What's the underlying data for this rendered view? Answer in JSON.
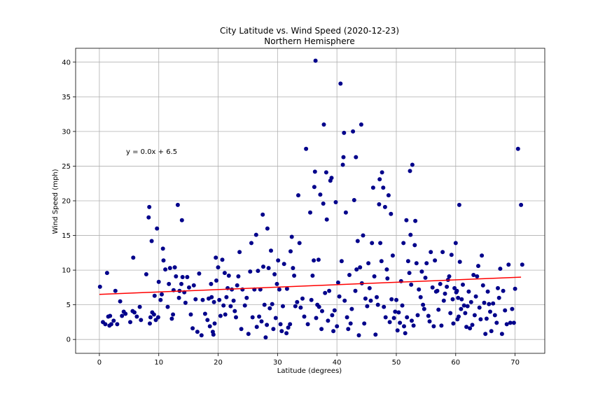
{
  "chart_data": {
    "type": "scatter",
    "title": "City Latitude vs. Wind Speed (2020-12-23)",
    "subtitle": "Northern Hemisphere",
    "xlabel": "Latitude (degrees)",
    "ylabel": "Wind Speed (mph)",
    "xlim": [
      -4,
      75
    ],
    "ylim": [
      -2,
      42
    ],
    "xticks": [
      0,
      10,
      20,
      30,
      40,
      50,
      60,
      70
    ],
    "yticks": [
      0,
      5,
      10,
      15,
      20,
      25,
      30,
      35,
      40
    ],
    "grid": true,
    "marker_color": "#00008b",
    "line_color": "#ff0000",
    "regression": {
      "slope": 0.035,
      "intercept": 6.5,
      "x_range": [
        0,
        71
      ],
      "equation": "y = 0.0x + 6.5"
    },
    "points": [
      [
        0.1,
        7.6
      ],
      [
        0.6,
        2.5
      ],
      [
        1.0,
        2.2
      ],
      [
        1.3,
        9.6
      ],
      [
        1.5,
        3.3
      ],
      [
        1.7,
        2.0
      ],
      [
        1.8,
        3.4
      ],
      [
        2.0,
        2.2
      ],
      [
        2.4,
        2.7
      ],
      [
        2.7,
        7.0
      ],
      [
        3.0,
        2.2
      ],
      [
        3.5,
        5.5
      ],
      [
        3.8,
        3.4
      ],
      [
        4.1,
        4.0
      ],
      [
        4.4,
        3.7
      ],
      [
        5.2,
        2.5
      ],
      [
        5.6,
        4.1
      ],
      [
        5.7,
        11.8
      ],
      [
        5.9,
        3.9
      ],
      [
        6.3,
        3.3
      ],
      [
        6.8,
        4.7
      ],
      [
        7.0,
        2.8
      ],
      [
        7.9,
        9.4
      ],
      [
        8.3,
        17.6
      ],
      [
        8.4,
        19.1
      ],
      [
        8.5,
        2.3
      ],
      [
        8.6,
        3.2
      ],
      [
        8.8,
        14.2
      ],
      [
        8.9,
        3.9
      ],
      [
        9.2,
        3.6
      ],
      [
        9.3,
        6.3
      ],
      [
        9.5,
        2.8
      ],
      [
        9.7,
        16.0
      ],
      [
        9.9,
        3.2
      ],
      [
        10.0,
        8.3
      ],
      [
        10.3,
        5.7
      ],
      [
        10.5,
        6.5
      ],
      [
        10.7,
        13.1
      ],
      [
        10.8,
        11.4
      ],
      [
        11.1,
        10.1
      ],
      [
        11.5,
        4.7
      ],
      [
        11.7,
        8.0
      ],
      [
        11.9,
        10.3
      ],
      [
        12.2,
        3.0
      ],
      [
        12.4,
        3.6
      ],
      [
        12.5,
        7.1
      ],
      [
        12.7,
        10.4
      ],
      [
        12.9,
        9.1
      ],
      [
        13.2,
        19.4
      ],
      [
        13.4,
        6.0
      ],
      [
        13.5,
        7.0
      ],
      [
        13.8,
        8.0
      ],
      [
        13.9,
        17.2
      ],
      [
        14.0,
        9.0
      ],
      [
        14.3,
        6.8
      ],
      [
        14.5,
        5.3
      ],
      [
        14.8,
        9.0
      ],
      [
        15.1,
        7.5
      ],
      [
        15.4,
        3.6
      ],
      [
        15.7,
        1.6
      ],
      [
        15.9,
        7.8
      ],
      [
        16.2,
        5.8
      ],
      [
        16.5,
        1.1
      ],
      [
        16.8,
        9.5
      ],
      [
        17.2,
        0.6
      ],
      [
        17.4,
        5.7
      ],
      [
        17.8,
        3.7
      ],
      [
        18.2,
        2.8
      ],
      [
        18.4,
        5.9
      ],
      [
        18.6,
        1.9
      ],
      [
        18.8,
        8.0
      ],
      [
        18.9,
        6.1
      ],
      [
        19.1,
        1.1
      ],
      [
        19.2,
        0.7
      ],
      [
        19.3,
        5.4
      ],
      [
        19.4,
        2.3
      ],
      [
        19.6,
        11.8
      ],
      [
        19.7,
        8.5
      ],
      [
        20.0,
        10.4
      ],
      [
        20.2,
        5.7
      ],
      [
        20.4,
        3.4
      ],
      [
        20.7,
        11.5
      ],
      [
        20.9,
        4.9
      ],
      [
        21.1,
        9.6
      ],
      [
        21.2,
        3.6
      ],
      [
        21.4,
        6.1
      ],
      [
        21.6,
        7.4
      ],
      [
        21.8,
        9.2
      ],
      [
        22.1,
        4.8
      ],
      [
        22.3,
        7.2
      ],
      [
        22.6,
        5.6
      ],
      [
        22.8,
        4.1
      ],
      [
        23.0,
        3.2
      ],
      [
        23.2,
        7.8
      ],
      [
        23.4,
        9.1
      ],
      [
        23.6,
        12.6
      ],
      [
        23.9,
        1.5
      ],
      [
        24.1,
        7.2
      ],
      [
        24.5,
        4.9
      ],
      [
        24.8,
        6.0
      ],
      [
        25.1,
        0.8
      ],
      [
        25.4,
        9.8
      ],
      [
        25.6,
        13.9
      ],
      [
        25.8,
        3.2
      ],
      [
        26.1,
        7.2
      ],
      [
        26.4,
        15.1
      ],
      [
        26.5,
        1.8
      ],
      [
        26.7,
        9.9
      ],
      [
        26.9,
        3.3
      ],
      [
        27.1,
        7.2
      ],
      [
        27.3,
        2.6
      ],
      [
        27.5,
        18.0
      ],
      [
        27.6,
        10.5
      ],
      [
        27.8,
        5.0
      ],
      [
        28.0,
        0.3
      ],
      [
        28.2,
        2.1
      ],
      [
        28.3,
        16.0
      ],
      [
        28.5,
        10.3
      ],
      [
        28.7,
        4.5
      ],
      [
        28.9,
        12.8
      ],
      [
        29.1,
        5.1
      ],
      [
        29.3,
        1.5
      ],
      [
        29.5,
        9.4
      ],
      [
        29.7,
        3.1
      ],
      [
        29.9,
        8.0
      ],
      [
        30.1,
        11.4
      ],
      [
        30.3,
        7.2
      ],
      [
        30.5,
        2.2
      ],
      [
        30.7,
        1.2
      ],
      [
        30.9,
        4.8
      ],
      [
        31.1,
        10.9
      ],
      [
        31.5,
        0.9
      ],
      [
        31.6,
        7.3
      ],
      [
        31.8,
        1.7
      ],
      [
        32.1,
        2.2
      ],
      [
        32.2,
        12.7
      ],
      [
        32.4,
        14.8
      ],
      [
        32.6,
        10.3
      ],
      [
        32.8,
        9.2
      ],
      [
        33.0,
        4.8
      ],
      [
        33.3,
        5.4
      ],
      [
        33.5,
        20.8
      ],
      [
        33.7,
        13.9
      ],
      [
        33.9,
        4.6
      ],
      [
        34.2,
        5.9
      ],
      [
        34.5,
        3.3
      ],
      [
        34.8,
        27.5
      ],
      [
        35.1,
        2.2
      ],
      [
        35.5,
        18.3
      ],
      [
        35.7,
        5.7
      ],
      [
        35.9,
        9.2
      ],
      [
        36.1,
        11.4
      ],
      [
        36.2,
        22.0
      ],
      [
        36.3,
        24.2
      ],
      [
        36.4,
        40.2
      ],
      [
        36.5,
        3.1
      ],
      [
        36.7,
        5.0
      ],
      [
        36.9,
        11.5
      ],
      [
        37.0,
        4.7
      ],
      [
        37.2,
        20.9
      ],
      [
        37.4,
        1.5
      ],
      [
        37.5,
        4.1
      ],
      [
        37.7,
        19.6
      ],
      [
        37.8,
        31.0
      ],
      [
        38.0,
        6.7
      ],
      [
        38.2,
        24.1
      ],
      [
        38.3,
        17.3
      ],
      [
        38.5,
        2.7
      ],
      [
        38.7,
        7.0
      ],
      [
        38.9,
        22.9
      ],
      [
        39.1,
        23.3
      ],
      [
        39.2,
        3.5
      ],
      [
        39.4,
        1.2
      ],
      [
        39.6,
        4.2
      ],
      [
        39.8,
        19.8
      ],
      [
        40.0,
        1.9
      ],
      [
        40.2,
        8.2
      ],
      [
        40.4,
        6.2
      ],
      [
        40.6,
        36.9
      ],
      [
        40.8,
        11.3
      ],
      [
        41.0,
        25.2
      ],
      [
        41.1,
        26.3
      ],
      [
        41.2,
        29.8
      ],
      [
        41.3,
        5.6
      ],
      [
        41.5,
        18.3
      ],
      [
        41.7,
        3.2
      ],
      [
        41.9,
        1.5
      ],
      [
        42.1,
        9.3
      ],
      [
        42.3,
        2.3
      ],
      [
        42.5,
        4.4
      ],
      [
        42.7,
        30.0
      ],
      [
        42.9,
        20.1
      ],
      [
        43.1,
        7.0
      ],
      [
        43.2,
        26.3
      ],
      [
        43.3,
        10.1
      ],
      [
        43.5,
        14.2
      ],
      [
        43.7,
        0.6
      ],
      [
        43.9,
        10.4
      ],
      [
        44.1,
        31.0
      ],
      [
        44.2,
        8.1
      ],
      [
        44.4,
        15.0
      ],
      [
        44.6,
        2.3
      ],
      [
        44.8,
        5.9
      ],
      [
        45.1,
        4.8
      ],
      [
        45.3,
        11.0
      ],
      [
        45.5,
        7.4
      ],
      [
        45.7,
        5.6
      ],
      [
        45.9,
        13.9
      ],
      [
        46.1,
        21.9
      ],
      [
        46.3,
        9.1
      ],
      [
        46.5,
        0.7
      ],
      [
        46.7,
        6.1
      ],
      [
        46.9,
        5.0
      ],
      [
        47.1,
        19.5
      ],
      [
        47.2,
        23.1
      ],
      [
        47.3,
        13.9
      ],
      [
        47.5,
        11.3
      ],
      [
        47.6,
        24.1
      ],
      [
        47.8,
        21.9
      ],
      [
        47.9,
        4.7
      ],
      [
        48.1,
        19.1
      ],
      [
        48.2,
        3.2
      ],
      [
        48.4,
        10.1
      ],
      [
        48.5,
        8.8
      ],
      [
        48.7,
        20.8
      ],
      [
        48.9,
        2.5
      ],
      [
        49.1,
        18.1
      ],
      [
        49.2,
        5.8
      ],
      [
        49.4,
        12.1
      ],
      [
        49.6,
        3.1
      ],
      [
        49.8,
        4.0
      ],
      [
        50.0,
        5.7
      ],
      [
        50.2,
        1.3
      ],
      [
        50.4,
        3.9
      ],
      [
        50.6,
        2.4
      ],
      [
        50.8,
        8.4
      ],
      [
        51.0,
        4.9
      ],
      [
        51.2,
        13.9
      ],
      [
        51.3,
        1.9
      ],
      [
        51.5,
        0.9
      ],
      [
        51.7,
        17.2
      ],
      [
        51.8,
        3.2
      ],
      [
        52.0,
        11.3
      ],
      [
        52.2,
        9.6
      ],
      [
        52.3,
        24.3
      ],
      [
        52.4,
        15.1
      ],
      [
        52.5,
        7.9
      ],
      [
        52.6,
        2.7
      ],
      [
        52.7,
        25.2
      ],
      [
        52.9,
        2.0
      ],
      [
        53.1,
        13.6
      ],
      [
        53.2,
        17.1
      ],
      [
        53.4,
        11.0
      ],
      [
        53.6,
        3.5
      ],
      [
        53.8,
        7.2
      ],
      [
        54.1,
        6.1
      ],
      [
        54.3,
        9.8
      ],
      [
        54.5,
        5.0
      ],
      [
        54.7,
        4.4
      ],
      [
        54.9,
        8.9
      ],
      [
        55.1,
        11.0
      ],
      [
        55.4,
        3.4
      ],
      [
        55.6,
        2.6
      ],
      [
        55.8,
        12.6
      ],
      [
        56.1,
        7.5
      ],
      [
        56.3,
        1.9
      ],
      [
        56.5,
        11.4
      ],
      [
        56.7,
        6.9
      ],
      [
        56.9,
        7.0
      ],
      [
        57.1,
        4.3
      ],
      [
        57.4,
        8.0
      ],
      [
        57.6,
        2.0
      ],
      [
        57.8,
        12.6
      ],
      [
        58.0,
        5.6
      ],
      [
        58.2,
        6.6
      ],
      [
        58.5,
        7.6
      ],
      [
        58.7,
        8.6
      ],
      [
        58.9,
        9.1
      ],
      [
        59.1,
        3.8
      ],
      [
        59.3,
        12.2
      ],
      [
        59.5,
        5.8
      ],
      [
        59.6,
        2.3
      ],
      [
        59.8,
        7.4
      ],
      [
        60.0,
        13.9
      ],
      [
        60.1,
        6.8
      ],
      [
        60.2,
        7.0
      ],
      [
        60.3,
        2.9
      ],
      [
        60.4,
        6.0
      ],
      [
        60.5,
        3.3
      ],
      [
        60.6,
        19.4
      ],
      [
        60.7,
        11.2
      ],
      [
        60.9,
        4.4
      ],
      [
        61.0,
        5.8
      ],
      [
        61.2,
        7.9
      ],
      [
        61.4,
        4.9
      ],
      [
        61.6,
        3.8
      ],
      [
        61.8,
        1.8
      ],
      [
        62.0,
        4.8
      ],
      [
        62.2,
        6.9
      ],
      [
        62.4,
        1.6
      ],
      [
        62.6,
        5.4
      ],
      [
        62.8,
        2.1
      ],
      [
        63.0,
        9.3
      ],
      [
        63.2,
        3.5
      ],
      [
        63.4,
        6.2
      ],
      [
        63.6,
        9.1
      ],
      [
        63.8,
        10.6
      ],
      [
        64.0,
        4.6
      ],
      [
        64.2,
        2.9
      ],
      [
        64.4,
        12.1
      ],
      [
        64.6,
        7.8
      ],
      [
        64.8,
        5.3
      ],
      [
        65.0,
        0.8
      ],
      [
        65.2,
        3.0
      ],
      [
        65.4,
        6.9
      ],
      [
        65.6,
        5.1
      ],
      [
        65.8,
        4.0
      ],
      [
        66.0,
        1.2
      ],
      [
        66.3,
        5.2
      ],
      [
        66.6,
        3.5
      ],
      [
        66.9,
        2.4
      ],
      [
        67.1,
        7.4
      ],
      [
        67.3,
        6.0
      ],
      [
        67.5,
        10.2
      ],
      [
        67.8,
        0.8
      ],
      [
        68.0,
        7.0
      ],
      [
        68.3,
        4.2
      ],
      [
        68.6,
        2.2
      ],
      [
        68.9,
        10.8
      ],
      [
        69.2,
        2.4
      ],
      [
        69.5,
        4.4
      ],
      [
        69.8,
        2.4
      ],
      [
        70.0,
        7.3
      ],
      [
        70.5,
        27.5
      ],
      [
        71.0,
        19.4
      ],
      [
        71.2,
        10.8
      ]
    ]
  }
}
